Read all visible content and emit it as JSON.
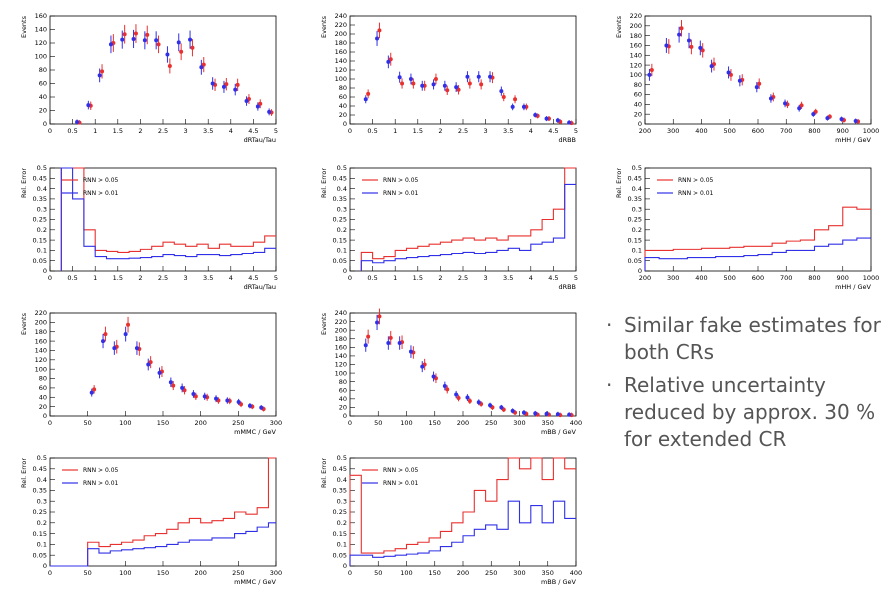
{
  "bullets": [
    {
      "text": "Similar fake estimates for both CRs",
      "dot": "·"
    },
    {
      "text": "Relative uncertainty reduced by approx. 30 % for extended CR",
      "dot": "·"
    }
  ],
  "colors": {
    "red": "#e8312f",
    "blue": "#3030e8",
    "axis": "#000000"
  },
  "chart_data": [
    {
      "id": "drtau-events",
      "type": "scatter",
      "xlabel": "dRTau/Tau",
      "ylabel": "Events",
      "xlim": [
        0,
        5
      ],
      "ylim": [
        0,
        160
      ],
      "xticks": [
        0,
        0.5,
        1,
        1.5,
        2,
        2.5,
        3,
        3.5,
        4,
        4.5,
        5
      ],
      "yticks": [
        0,
        20,
        40,
        60,
        80,
        100,
        120,
        140,
        160
      ],
      "x": [
        0.375,
        0.625,
        0.875,
        1.125,
        1.375,
        1.625,
        1.875,
        2.125,
        2.375,
        2.625,
        2.875,
        3.125,
        3.375,
        3.625,
        3.875,
        4.125,
        4.375,
        4.625,
        4.875
      ],
      "series": [
        {
          "color": "red",
          "values": [
            0,
            2,
            27,
            78,
            120,
            133,
            134,
            132,
            118,
            86,
            107,
            113,
            88,
            58,
            59,
            58,
            37,
            30,
            17
          ]
        },
        {
          "color": "blue",
          "values": [
            0,
            3,
            28,
            72,
            118,
            125,
            126,
            124,
            124,
            103,
            121,
            125,
            84,
            60,
            55,
            51,
            34,
            26,
            18
          ]
        }
      ]
    },
    {
      "id": "drbb-events",
      "type": "scatter",
      "xlabel": "dRBB",
      "ylabel": "Events",
      "xlim": [
        0,
        5
      ],
      "ylim": [
        0,
        240
      ],
      "xticks": [
        0,
        0.5,
        1,
        1.5,
        2,
        2.5,
        3,
        3.5,
        4,
        4.5,
        5
      ],
      "yticks": [
        0,
        20,
        40,
        60,
        80,
        100,
        120,
        140,
        160,
        180,
        200,
        220,
        240
      ],
      "x": [
        0.375,
        0.625,
        0.875,
        1.125,
        1.375,
        1.625,
        1.875,
        2.125,
        2.375,
        2.625,
        2.875,
        3.125,
        3.375,
        3.625,
        3.875,
        4.125,
        4.375,
        4.625,
        4.875
      ],
      "series": [
        {
          "color": "red",
          "values": [
            67,
            208,
            144,
            90,
            90,
            85,
            100,
            75,
            76,
            90,
            88,
            103,
            60,
            55,
            38,
            18,
            12,
            5,
            2
          ]
        },
        {
          "color": "blue",
          "values": [
            55,
            190,
            138,
            104,
            100,
            85,
            88,
            85,
            82,
            105,
            105,
            105,
            73,
            38,
            38,
            20,
            12,
            8,
            3
          ]
        }
      ]
    },
    {
      "id": "mhh-events",
      "type": "scatter",
      "xlabel": "mHH / GeV",
      "ylabel": "Events",
      "xlim": [
        200,
        1000
      ],
      "ylim": [
        0,
        220
      ],
      "xticks": [
        200,
        300,
        400,
        500,
        600,
        700,
        800,
        900,
        1000
      ],
      "yticks": [
        0,
        20,
        40,
        60,
        80,
        100,
        120,
        140,
        160,
        180,
        200,
        220
      ],
      "x": [
        220,
        280,
        325,
        360,
        400,
        440,
        500,
        540,
        600,
        650,
        700,
        750,
        800,
        850,
        900,
        950
      ],
      "series": [
        {
          "color": "red",
          "values": [
            110,
            158,
            195,
            157,
            150,
            122,
            100,
            90,
            82,
            55,
            40,
            38,
            25,
            15,
            8,
            5
          ]
        },
        {
          "color": "blue",
          "values": [
            100,
            160,
            182,
            170,
            155,
            118,
            105,
            88,
            75,
            52,
            42,
            32,
            20,
            12,
            10,
            6
          ]
        }
      ]
    },
    {
      "id": "drtau-error",
      "type": "line",
      "xlabel": "dRTau/Tau",
      "ylabel": "Rel. Error",
      "xlim": [
        0,
        5
      ],
      "ylim": [
        0,
        0.5
      ],
      "xticks": [
        0,
        0.5,
        1,
        1.5,
        2,
        2.5,
        3,
        3.5,
        4,
        4.5,
        5
      ],
      "yticks": [
        0,
        0.05,
        0.1,
        0.15,
        0.2,
        0.25,
        0.3,
        0.35,
        0.4,
        0.45,
        0.5
      ],
      "legend": [
        {
          "name": "RNN > 0.05",
          "color": "red"
        },
        {
          "name": "RNN > 0.01",
          "color": "blue"
        }
      ],
      "edges": [
        0.25,
        0.5,
        0.75,
        1,
        1.25,
        1.5,
        1.75,
        2,
        2.25,
        2.5,
        2.75,
        3,
        3.25,
        3.5,
        3.75,
        4,
        4.25,
        4.5,
        4.75,
        5
      ],
      "series": [
        {
          "color": "red",
          "values": [
            0.5,
            0.5,
            0.2,
            0.1,
            0.095,
            0.09,
            0.095,
            0.105,
            0.12,
            0.14,
            0.13,
            0.12,
            0.13,
            0.11,
            0.13,
            0.12,
            0.12,
            0.14,
            0.17
          ]
        },
        {
          "color": "blue",
          "values": [
            0.5,
            0.35,
            0.12,
            0.07,
            0.06,
            0.06,
            0.062,
            0.065,
            0.07,
            0.08,
            0.075,
            0.07,
            0.08,
            0.08,
            0.075,
            0.08,
            0.085,
            0.09,
            0.11
          ]
        }
      ]
    },
    {
      "id": "drbb-error",
      "type": "line",
      "xlabel": "dRBB",
      "ylabel": "Rel. Error",
      "xlim": [
        0,
        5
      ],
      "ylim": [
        0,
        0.5
      ],
      "xticks": [
        0,
        0.5,
        1,
        1.5,
        2,
        2.5,
        3,
        3.5,
        4,
        4.5,
        5
      ],
      "yticks": [
        0,
        0.05,
        0.1,
        0.15,
        0.2,
        0.25,
        0.3,
        0.35,
        0.4,
        0.45,
        0.5
      ],
      "legend": [
        {
          "name": "RNN > 0.05",
          "color": "red"
        },
        {
          "name": "RNN > 0.01",
          "color": "blue"
        }
      ],
      "edges": [
        0.25,
        0.5,
        0.75,
        1,
        1.25,
        1.5,
        1.75,
        2,
        2.25,
        2.5,
        2.75,
        3,
        3.25,
        3.5,
        3.75,
        4,
        4.25,
        4.5,
        4.75,
        5
      ],
      "series": [
        {
          "color": "red",
          "values": [
            0.09,
            0.06,
            0.07,
            0.1,
            0.11,
            0.12,
            0.13,
            0.14,
            0.15,
            0.16,
            0.15,
            0.16,
            0.15,
            0.17,
            0.17,
            0.2,
            0.25,
            0.3,
            0.5
          ]
        },
        {
          "color": "blue",
          "values": [
            0.05,
            0.04,
            0.05,
            0.06,
            0.065,
            0.07,
            0.075,
            0.08,
            0.085,
            0.09,
            0.085,
            0.09,
            0.1,
            0.11,
            0.1,
            0.13,
            0.14,
            0.16,
            0.42
          ]
        }
      ]
    },
    {
      "id": "mhh-error",
      "type": "line",
      "xlabel": "mHH / GeV",
      "ylabel": "Rel. Error",
      "xlim": [
        200,
        1000
      ],
      "ylim": [
        0,
        0.5
      ],
      "xticks": [
        200,
        300,
        400,
        500,
        600,
        700,
        800,
        900,
        1000
      ],
      "yticks": [
        0,
        0.05,
        0.1,
        0.15,
        0.2,
        0.25,
        0.3,
        0.35,
        0.4,
        0.45,
        0.5
      ],
      "legend": [
        {
          "name": "RNN > 0.05",
          "color": "red"
        },
        {
          "name": "RNN > 0.01",
          "color": "blue"
        }
      ],
      "edges": [
        200,
        250,
        300,
        350,
        400,
        450,
        500,
        550,
        600,
        650,
        700,
        750,
        800,
        850,
        900,
        950,
        1000
      ],
      "series": [
        {
          "color": "red",
          "values": [
            0.1,
            0.1,
            0.105,
            0.105,
            0.11,
            0.11,
            0.115,
            0.12,
            0.12,
            0.135,
            0.145,
            0.15,
            0.2,
            0.22,
            0.31,
            0.3
          ]
        },
        {
          "color": "blue",
          "values": [
            0.065,
            0.06,
            0.06,
            0.065,
            0.065,
            0.07,
            0.07,
            0.075,
            0.08,
            0.09,
            0.1,
            0.1,
            0.12,
            0.13,
            0.15,
            0.16
          ]
        }
      ]
    },
    {
      "id": "mmmc-events",
      "type": "scatter",
      "xlabel": "mMMC / GeV",
      "ylabel": "Events",
      "xlim": [
        0,
        300
      ],
      "ylim": [
        0,
        220
      ],
      "xticks": [
        0,
        50,
        100,
        150,
        200,
        250,
        300
      ],
      "yticks": [
        0,
        20,
        40,
        60,
        80,
        100,
        120,
        140,
        160,
        180,
        200,
        220
      ],
      "x": [
        57,
        72,
        87,
        102,
        117,
        132,
        147,
        162,
        177,
        192,
        207,
        222,
        237,
        252,
        267,
        282
      ],
      "series": [
        {
          "color": "red",
          "values": [
            57,
            175,
            148,
            195,
            143,
            115,
            95,
            65,
            55,
            42,
            40,
            33,
            32,
            25,
            20,
            15
          ]
        },
        {
          "color": "blue",
          "values": [
            50,
            160,
            145,
            175,
            145,
            110,
            92,
            72,
            60,
            47,
            42,
            37,
            33,
            30,
            22,
            18
          ]
        }
      ]
    },
    {
      "id": "mbb-events",
      "type": "scatter",
      "xlabel": "mBB / GeV",
      "ylabel": "Events",
      "xlim": [
        0,
        400
      ],
      "ylim": [
        0,
        240
      ],
      "xticks": [
        0,
        50,
        100,
        150,
        200,
        250,
        300,
        350,
        400
      ],
      "yticks": [
        0,
        20,
        40,
        60,
        80,
        100,
        120,
        140,
        160,
        180,
        200,
        220,
        240
      ],
      "x": [
        30,
        50,
        70,
        90,
        110,
        130,
        150,
        170,
        190,
        210,
        230,
        250,
        270,
        290,
        310,
        330,
        350,
        370,
        390
      ],
      "series": [
        {
          "color": "red",
          "values": [
            185,
            232,
            182,
            172,
            148,
            120,
            88,
            62,
            42,
            35,
            28,
            20,
            15,
            8,
            5,
            3,
            3,
            2,
            2
          ]
        },
        {
          "color": "blue",
          "values": [
            165,
            218,
            170,
            170,
            150,
            115,
            92,
            70,
            50,
            43,
            32,
            25,
            20,
            12,
            8,
            6,
            5,
            4,
            3
          ]
        }
      ]
    },
    {
      "id": "mmmc-error",
      "type": "line",
      "xlabel": "mMMC / GeV",
      "ylabel": "Rel. Error",
      "xlim": [
        0,
        300
      ],
      "ylim": [
        0,
        0.5
      ],
      "xticks": [
        0,
        50,
        100,
        150,
        200,
        250,
        300
      ],
      "yticks": [
        0,
        0.05,
        0.1,
        0.15,
        0.2,
        0.25,
        0.3,
        0.35,
        0.4,
        0.45,
        0.5
      ],
      "legend": [
        {
          "name": "RNN > 0.05",
          "color": "red"
        },
        {
          "name": "RNN > 0.01",
          "color": "blue"
        }
      ],
      "edges": [
        0,
        50,
        65,
        80,
        95,
        110,
        125,
        140,
        155,
        170,
        185,
        200,
        215,
        230,
        245,
        260,
        275,
        290,
        300
      ],
      "series": [
        {
          "color": "red",
          "values": [
            0,
            0.11,
            0.09,
            0.1,
            0.11,
            0.12,
            0.14,
            0.15,
            0.17,
            0.2,
            0.22,
            0.2,
            0.21,
            0.22,
            0.25,
            0.24,
            0.27,
            0.5
          ]
        },
        {
          "color": "blue",
          "values": [
            0,
            0.08,
            0.06,
            0.07,
            0.075,
            0.08,
            0.085,
            0.09,
            0.1,
            0.11,
            0.12,
            0.12,
            0.13,
            0.13,
            0.15,
            0.16,
            0.18,
            0.2
          ]
        }
      ]
    },
    {
      "id": "mbb-error",
      "type": "line",
      "xlabel": "mBB / GeV",
      "ylabel": "Rel. Error",
      "xlim": [
        0,
        400
      ],
      "ylim": [
        0,
        0.5
      ],
      "xticks": [
        0,
        50,
        100,
        150,
        200,
        250,
        300,
        350,
        400
      ],
      "yticks": [
        0,
        0.05,
        0.1,
        0.15,
        0.2,
        0.25,
        0.3,
        0.35,
        0.4,
        0.45,
        0.5
      ],
      "legend": [
        {
          "name": "RNN > 0.05",
          "color": "red"
        },
        {
          "name": "RNN > 0.01",
          "color": "blue"
        }
      ],
      "edges": [
        0,
        20,
        40,
        60,
        80,
        100,
        120,
        140,
        160,
        180,
        200,
        220,
        240,
        260,
        280,
        300,
        320,
        340,
        360,
        380,
        400
      ],
      "series": [
        {
          "color": "red",
          "values": [
            0.42,
            0.06,
            0.06,
            0.07,
            0.08,
            0.1,
            0.11,
            0.13,
            0.16,
            0.2,
            0.25,
            0.35,
            0.3,
            0.4,
            0.5,
            0.45,
            0.5,
            0.4,
            0.5,
            0.45
          ]
        },
        {
          "color": "blue",
          "values": [
            0.05,
            0.05,
            0.04,
            0.045,
            0.05,
            0.055,
            0.06,
            0.07,
            0.09,
            0.11,
            0.14,
            0.17,
            0.19,
            0.17,
            0.3,
            0.2,
            0.28,
            0.2,
            0.3,
            0.22
          ]
        }
      ]
    }
  ]
}
